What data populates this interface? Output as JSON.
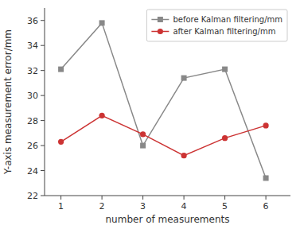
{
  "chart_data": {
    "type": "line",
    "x": [
      1,
      2,
      3,
      4,
      5,
      6
    ],
    "series": [
      {
        "name": "before Kalman filtering/mm",
        "color": "#888888",
        "marker": "square",
        "values": [
          32.1,
          35.8,
          26.0,
          31.4,
          32.1,
          23.4
        ]
      },
      {
        "name": "after Kalman filtering/mm",
        "color": "#cc3333",
        "marker": "circle",
        "values": [
          26.3,
          28.4,
          26.9,
          25.2,
          26.6,
          27.6
        ]
      }
    ],
    "xlabel": "number of measurements",
    "ylabel": "Y-axis measurement error/mm",
    "xlim": [
      0.6,
      6.6
    ],
    "ylim": [
      22,
      37
    ],
    "xticks": [
      1,
      2,
      3,
      4,
      5,
      6
    ],
    "yticks": [
      22,
      24,
      26,
      28,
      30,
      32,
      34,
      36
    ],
    "grid": false,
    "legend": "upper right"
  }
}
